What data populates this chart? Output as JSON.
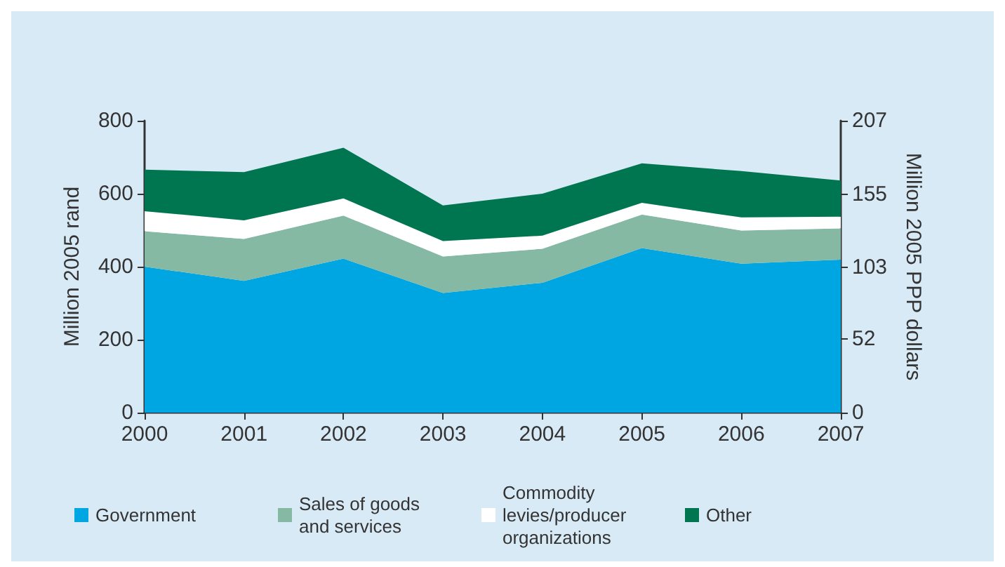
{
  "chart_data": {
    "type": "area",
    "stacked": true,
    "ylabel": "Million 2005 rand",
    "y2label": "Million 2005 PPP dollars",
    "categories": [
      "2000",
      "2001",
      "2002",
      "2003",
      "2004",
      "2005",
      "2006",
      "2007"
    ],
    "series": [
      {
        "name": "Government",
        "color": "#00a6e2",
        "values": [
          400,
          361,
          422,
          328,
          356,
          451,
          408,
          419
        ]
      },
      {
        "name": "Sales of goods and services",
        "color": "#86b9a3",
        "values": [
          97,
          115,
          118,
          100,
          93,
          92,
          91,
          86
        ]
      },
      {
        "name": "Commodity levies/producer organizations",
        "color": "#ffffff",
        "values": [
          55,
          51,
          47,
          42,
          36,
          32,
          36,
          32
        ]
      },
      {
        "name": "Other",
        "color": "#007650",
        "values": [
          114,
          132,
          139,
          98,
          115,
          108,
          127,
          99
        ]
      }
    ],
    "ylim": [
      0,
      800
    ],
    "yticks": [
      0,
      200,
      400,
      600,
      800
    ],
    "y2lim": [
      0,
      207
    ],
    "y2ticks": [
      0,
      52,
      103,
      155,
      207
    ],
    "grid": false,
    "legend": "bottom"
  }
}
